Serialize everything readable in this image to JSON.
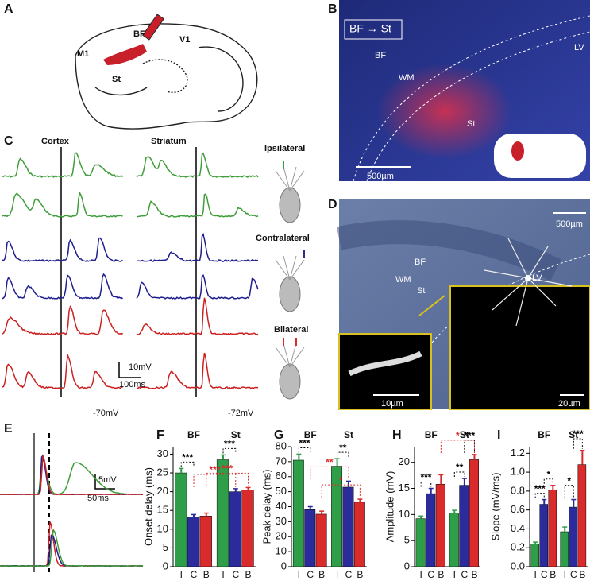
{
  "panel_labels": [
    "A",
    "B",
    "C",
    "D",
    "E",
    "F",
    "G",
    "H",
    "I"
  ],
  "panel_a": {
    "labels": [
      "M1",
      "BF",
      "V1",
      "St"
    ]
  },
  "panel_b": {
    "title": "BF → St",
    "labels": [
      "BF",
      "WM",
      "St",
      "LV"
    ],
    "scale_bar": "500µm"
  },
  "panel_c": {
    "columns": [
      "Cortex",
      "Striatum"
    ],
    "conditions": [
      "Ipsilateral",
      "Contralateral",
      "Bilateral"
    ],
    "scale_y": "10mV",
    "scale_x": "100ms",
    "baselines": [
      "-70mV",
      "-72mV"
    ]
  },
  "panel_d": {
    "labels": [
      "BF",
      "WM",
      "St",
      "LV"
    ],
    "scale_bars": [
      "500µm",
      "10µm",
      "20µm"
    ]
  },
  "panel_e": {
    "scale_y": "5mV",
    "scale_x": "50ms"
  },
  "chart_data": [
    {
      "type": "bar",
      "y_label": "Onset delay (ms)",
      "groups": [
        "BF",
        "St"
      ],
      "categories": [
        "I",
        "C",
        "B",
        "I",
        "C",
        "B"
      ],
      "values": [
        25,
        13.3,
        13.5,
        28.5,
        20,
        20.5
      ],
      "errors": [
        1.2,
        0.6,
        0.8,
        1.3,
        0.8,
        0.6
      ],
      "colors": [
        "#2e9e48",
        "#2b2b9c",
        "#d92b2b",
        "#2e9e48",
        "#2b2b9c",
        "#d92b2b"
      ],
      "ylim": [
        0,
        32
      ],
      "yticks": [
        0,
        5,
        10,
        15,
        20,
        25,
        30
      ],
      "annotations": [
        "***",
        "***",
        "***",
        "***"
      ]
    },
    {
      "type": "bar",
      "y_label": "Peak delay (ms)",
      "groups": [
        "BF",
        "St"
      ],
      "categories": [
        "I",
        "C",
        "B",
        "I",
        "C",
        "B"
      ],
      "values": [
        71,
        38,
        35,
        67,
        53,
        43
      ],
      "errors": [
        4,
        2,
        2,
        5,
        4,
        2
      ],
      "colors": [
        "#2e9e48",
        "#2b2b9c",
        "#d92b2b",
        "#2e9e48",
        "#2b2b9c",
        "#d92b2b"
      ],
      "ylim": [
        0,
        80
      ],
      "yticks": [
        0,
        10,
        20,
        30,
        40,
        50,
        60,
        70,
        80
      ],
      "annotations": [
        "***",
        "**",
        "**",
        "*"
      ]
    },
    {
      "type": "bar",
      "y_label": "Amplitude (mV)",
      "groups": [
        "BF",
        "St"
      ],
      "categories": [
        "I",
        "C",
        "B",
        "I",
        "C",
        "B"
      ],
      "values": [
        9.2,
        14,
        15.8,
        10.3,
        15.6,
        20.5
      ],
      "errors": [
        0.5,
        1,
        1.8,
        0.5,
        1.3,
        1
      ],
      "colors": [
        "#2e9e48",
        "#2b2b9c",
        "#d92b2b",
        "#2e9e48",
        "#2b2b9c",
        "#d92b2b"
      ],
      "ylim": [
        0,
        23
      ],
      "yticks": [
        0,
        5,
        10,
        15,
        20
      ],
      "annotations": [
        "***",
        "**",
        "***",
        "*"
      ]
    },
    {
      "type": "bar",
      "y_label": "Slope (mV/ms)",
      "groups": [
        "BF",
        "St"
      ],
      "categories": [
        "I",
        "C",
        "B",
        "I",
        "C",
        "B"
      ],
      "values": [
        0.24,
        0.66,
        0.81,
        0.37,
        0.63,
        1.08
      ],
      "errors": [
        0.02,
        0.05,
        0.05,
        0.05,
        0.08,
        0.15
      ],
      "colors": [
        "#2e9e48",
        "#2b2b9c",
        "#d92b2b",
        "#2e9e48",
        "#2b2b9c",
        "#d92b2b"
      ],
      "ylim": [
        0,
        1.27
      ],
      "yticks": [
        {
          "value": 0,
          "label": "0.0"
        },
        0.2,
        0.4,
        0.6,
        0.8,
        {
          "value": 1,
          "label": "1.0"
        },
        1.2
      ],
      "annotations": [
        "***",
        "*",
        "*",
        "***"
      ]
    }
  ]
}
